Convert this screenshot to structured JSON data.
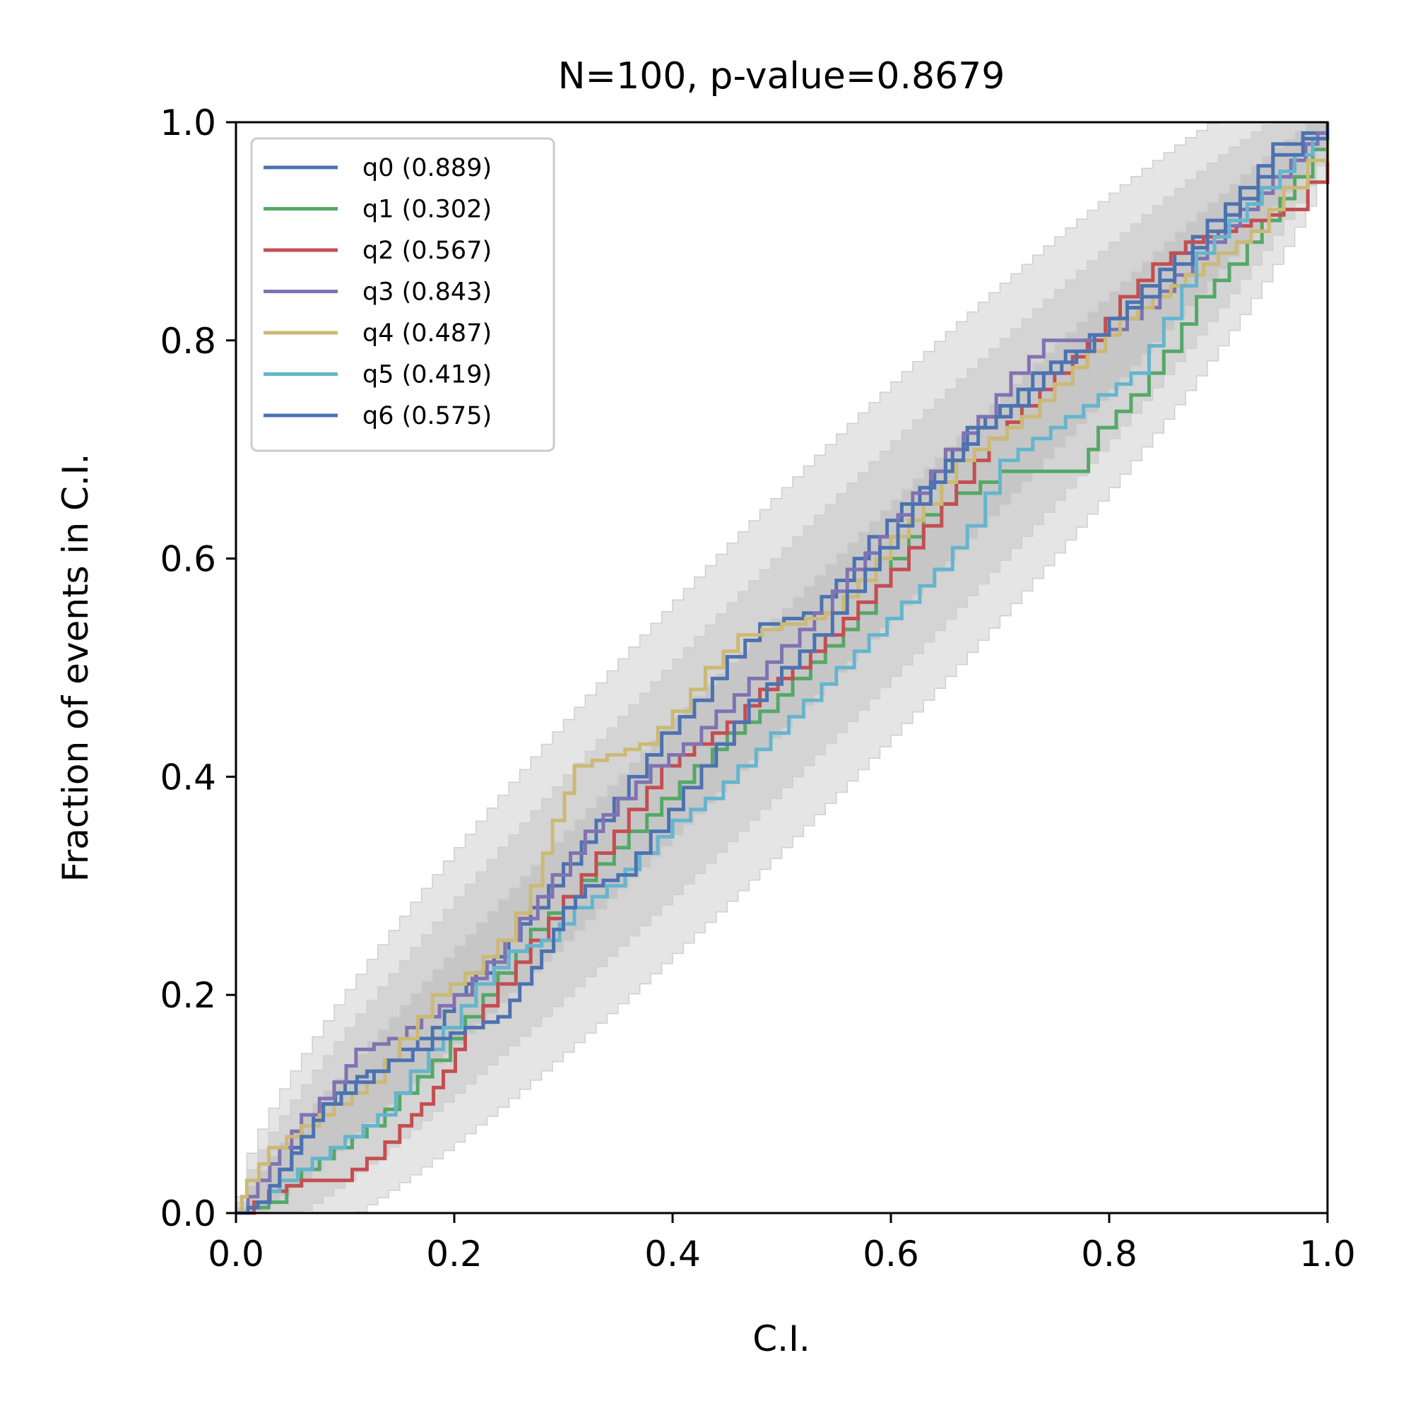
{
  "chart_data": {
    "type": "line",
    "title": "N=100, p-value=0.8679",
    "xlabel": "C.I.",
    "ylabel": "Fraction of events in C.I.",
    "xlim": [
      0.0,
      1.0
    ],
    "ylim": [
      0.0,
      1.0
    ],
    "xticks": [
      "0.0",
      "0.2",
      "0.4",
      "0.6",
      "0.8",
      "1.0"
    ],
    "yticks": [
      "0.0",
      "0.2",
      "0.4",
      "0.6",
      "0.8",
      "1.0"
    ],
    "grid": false,
    "legend_position": "top-left",
    "confidence_bands": [
      {
        "level": "outer",
        "color": "#e5e5e5"
      },
      {
        "level": "middle",
        "color": "#d4d4d4"
      },
      {
        "level": "inner",
        "color": "#c6c6c6"
      }
    ],
    "series": [
      {
        "name": "q0 (0.889)",
        "color": "#4c72b0",
        "points": [
          [
            0,
            0
          ],
          [
            0.02,
            0.01
          ],
          [
            0.04,
            0.04
          ],
          [
            0.06,
            0.08
          ],
          [
            0.08,
            0.1
          ],
          [
            0.1,
            0.12
          ],
          [
            0.12,
            0.13
          ],
          [
            0.15,
            0.15
          ],
          [
            0.18,
            0.17
          ],
          [
            0.2,
            0.2
          ],
          [
            0.22,
            0.22
          ],
          [
            0.25,
            0.25
          ],
          [
            0.27,
            0.28
          ],
          [
            0.3,
            0.32
          ],
          [
            0.33,
            0.36
          ],
          [
            0.36,
            0.4
          ],
          [
            0.39,
            0.44
          ],
          [
            0.42,
            0.47
          ],
          [
            0.45,
            0.51
          ],
          [
            0.48,
            0.54
          ],
          [
            0.52,
            0.55
          ],
          [
            0.55,
            0.58
          ],
          [
            0.58,
            0.62
          ],
          [
            0.61,
            0.65
          ],
          [
            0.64,
            0.68
          ],
          [
            0.67,
            0.72
          ],
          [
            0.7,
            0.74
          ],
          [
            0.73,
            0.77
          ],
          [
            0.76,
            0.79
          ],
          [
            0.8,
            0.82
          ],
          [
            0.83,
            0.85
          ],
          [
            0.86,
            0.88
          ],
          [
            0.89,
            0.91
          ],
          [
            0.92,
            0.94
          ],
          [
            0.95,
            0.98
          ],
          [
            1,
            1
          ]
        ]
      },
      {
        "name": "q1 (0.302)",
        "color": "#55a868",
        "points": [
          [
            0,
            0
          ],
          [
            0.03,
            0.01
          ],
          [
            0.06,
            0.04
          ],
          [
            0.09,
            0.06
          ],
          [
            0.12,
            0.08
          ],
          [
            0.15,
            0.11
          ],
          [
            0.18,
            0.14
          ],
          [
            0.21,
            0.18
          ],
          [
            0.24,
            0.22
          ],
          [
            0.27,
            0.26
          ],
          [
            0.3,
            0.29
          ],
          [
            0.33,
            0.32
          ],
          [
            0.36,
            0.35
          ],
          [
            0.39,
            0.38
          ],
          [
            0.42,
            0.41
          ],
          [
            0.45,
            0.44
          ],
          [
            0.48,
            0.46
          ],
          [
            0.51,
            0.49
          ],
          [
            0.54,
            0.52
          ],
          [
            0.57,
            0.55
          ],
          [
            0.6,
            0.6
          ],
          [
            0.63,
            0.64
          ],
          [
            0.66,
            0.66
          ],
          [
            0.7,
            0.68
          ],
          [
            0.74,
            0.68
          ],
          [
            0.77,
            0.68
          ],
          [
            0.79,
            0.72
          ],
          [
            0.82,
            0.75
          ],
          [
            0.85,
            0.79
          ],
          [
            0.88,
            0.84
          ],
          [
            0.91,
            0.87
          ],
          [
            0.94,
            0.91
          ],
          [
            0.97,
            0.95
          ],
          [
            1,
            1
          ]
        ]
      },
      {
        "name": "q2 (0.567)",
        "color": "#c44e52",
        "points": [
          [
            0,
            0
          ],
          [
            0.03,
            0.02
          ],
          [
            0.06,
            0.03
          ],
          [
            0.09,
            0.03
          ],
          [
            0.12,
            0.05
          ],
          [
            0.15,
            0.08
          ],
          [
            0.17,
            0.1
          ],
          [
            0.19,
            0.13
          ],
          [
            0.21,
            0.17
          ],
          [
            0.24,
            0.21
          ],
          [
            0.27,
            0.25
          ],
          [
            0.3,
            0.29
          ],
          [
            0.33,
            0.33
          ],
          [
            0.36,
            0.37
          ],
          [
            0.39,
            0.41
          ],
          [
            0.42,
            0.43
          ],
          [
            0.45,
            0.45
          ],
          [
            0.48,
            0.48
          ],
          [
            0.51,
            0.5
          ],
          [
            0.54,
            0.53
          ],
          [
            0.57,
            0.56
          ],
          [
            0.6,
            0.59
          ],
          [
            0.63,
            0.63
          ],
          [
            0.66,
            0.67
          ],
          [
            0.69,
            0.71
          ],
          [
            0.72,
            0.74
          ],
          [
            0.75,
            0.77
          ],
          [
            0.78,
            0.8
          ],
          [
            0.81,
            0.84
          ],
          [
            0.84,
            0.87
          ],
          [
            0.87,
            0.89
          ],
          [
            0.9,
            0.9
          ],
          [
            0.93,
            0.91
          ],
          [
            0.96,
            0.92
          ],
          [
            1,
            0.97
          ]
        ]
      },
      {
        "name": "q3 (0.843)",
        "color": "#8172b2",
        "points": [
          [
            0,
            0
          ],
          [
            0.02,
            0.03
          ],
          [
            0.04,
            0.06
          ],
          [
            0.06,
            0.09
          ],
          [
            0.09,
            0.12
          ],
          [
            0.11,
            0.15
          ],
          [
            0.14,
            0.16
          ],
          [
            0.17,
            0.18
          ],
          [
            0.2,
            0.2
          ],
          [
            0.23,
            0.23
          ],
          [
            0.26,
            0.27
          ],
          [
            0.29,
            0.31
          ],
          [
            0.32,
            0.35
          ],
          [
            0.35,
            0.38
          ],
          [
            0.38,
            0.41
          ],
          [
            0.41,
            0.43
          ],
          [
            0.44,
            0.46
          ],
          [
            0.47,
            0.49
          ],
          [
            0.5,
            0.52
          ],
          [
            0.53,
            0.55
          ],
          [
            0.56,
            0.59
          ],
          [
            0.59,
            0.62
          ],
          [
            0.62,
            0.66
          ],
          [
            0.65,
            0.7
          ],
          [
            0.68,
            0.73
          ],
          [
            0.71,
            0.77
          ],
          [
            0.74,
            0.8
          ],
          [
            0.77,
            0.8
          ],
          [
            0.8,
            0.81
          ],
          [
            0.83,
            0.83
          ],
          [
            0.86,
            0.86
          ],
          [
            0.89,
            0.89
          ],
          [
            0.92,
            0.92
          ],
          [
            0.95,
            0.95
          ],
          [
            0.98,
            0.98
          ],
          [
            1,
            1
          ]
        ]
      },
      {
        "name": "q4 (0.487)",
        "color": "#ccb974",
        "points": [
          [
            0,
            0
          ],
          [
            0.01,
            0.03
          ],
          [
            0.03,
            0.06
          ],
          [
            0.06,
            0.08
          ],
          [
            0.09,
            0.1
          ],
          [
            0.12,
            0.12
          ],
          [
            0.15,
            0.16
          ],
          [
            0.18,
            0.2
          ],
          [
            0.21,
            0.22
          ],
          [
            0.24,
            0.25
          ],
          [
            0.27,
            0.3
          ],
          [
            0.29,
            0.36
          ],
          [
            0.31,
            0.41
          ],
          [
            0.34,
            0.42
          ],
          [
            0.37,
            0.43
          ],
          [
            0.4,
            0.46
          ],
          [
            0.43,
            0.5
          ],
          [
            0.46,
            0.53
          ],
          [
            0.5,
            0.54
          ],
          [
            0.54,
            0.55
          ],
          [
            0.57,
            0.58
          ],
          [
            0.6,
            0.62
          ],
          [
            0.63,
            0.65
          ],
          [
            0.66,
            0.69
          ],
          [
            0.69,
            0.71
          ],
          [
            0.72,
            0.73
          ],
          [
            0.75,
            0.76
          ],
          [
            0.78,
            0.79
          ],
          [
            0.81,
            0.82
          ],
          [
            0.84,
            0.84
          ],
          [
            0.87,
            0.86
          ],
          [
            0.9,
            0.88
          ],
          [
            0.93,
            0.9
          ],
          [
            0.96,
            0.94
          ],
          [
            1,
            0.99
          ]
        ]
      },
      {
        "name": "q5 (0.419)",
        "color": "#64b5cd",
        "points": [
          [
            0,
            0
          ],
          [
            0.02,
            0.01
          ],
          [
            0.04,
            0.03
          ],
          [
            0.07,
            0.05
          ],
          [
            0.1,
            0.07
          ],
          [
            0.13,
            0.09
          ],
          [
            0.16,
            0.13
          ],
          [
            0.19,
            0.17
          ],
          [
            0.22,
            0.21
          ],
          [
            0.25,
            0.24
          ],
          [
            0.28,
            0.25
          ],
          [
            0.31,
            0.28
          ],
          [
            0.34,
            0.3
          ],
          [
            0.37,
            0.33
          ],
          [
            0.4,
            0.36
          ],
          [
            0.43,
            0.38
          ],
          [
            0.46,
            0.41
          ],
          [
            0.49,
            0.44
          ],
          [
            0.52,
            0.47
          ],
          [
            0.55,
            0.5
          ],
          [
            0.58,
            0.53
          ],
          [
            0.61,
            0.56
          ],
          [
            0.64,
            0.59
          ],
          [
            0.67,
            0.63
          ],
          [
            0.7,
            0.69
          ],
          [
            0.73,
            0.71
          ],
          [
            0.76,
            0.73
          ],
          [
            0.79,
            0.75
          ],
          [
            0.82,
            0.77
          ],
          [
            0.85,
            0.82
          ],
          [
            0.88,
            0.88
          ],
          [
            0.91,
            0.91
          ],
          [
            0.94,
            0.94
          ],
          [
            0.97,
            0.97
          ],
          [
            1,
            1
          ]
        ]
      },
      {
        "name": "q6 (0.575)",
        "color": "#4c72b0",
        "points": [
          [
            0,
            0
          ],
          [
            0.02,
            0.01
          ],
          [
            0.04,
            0.04
          ],
          [
            0.06,
            0.07
          ],
          [
            0.08,
            0.1
          ],
          [
            0.11,
            0.12
          ],
          [
            0.14,
            0.14
          ],
          [
            0.18,
            0.16
          ],
          [
            0.21,
            0.17
          ],
          [
            0.24,
            0.18
          ],
          [
            0.26,
            0.21
          ],
          [
            0.28,
            0.24
          ],
          [
            0.3,
            0.28
          ],
          [
            0.32,
            0.3
          ],
          [
            0.35,
            0.31
          ],
          [
            0.38,
            0.35
          ],
          [
            0.41,
            0.39
          ],
          [
            0.44,
            0.43
          ],
          [
            0.47,
            0.47
          ],
          [
            0.5,
            0.5
          ],
          [
            0.53,
            0.53
          ],
          [
            0.56,
            0.57
          ],
          [
            0.59,
            0.61
          ],
          [
            0.62,
            0.65
          ],
          [
            0.65,
            0.69
          ],
          [
            0.68,
            0.72
          ],
          [
            0.71,
            0.74
          ],
          [
            0.74,
            0.77
          ],
          [
            0.77,
            0.79
          ],
          [
            0.8,
            0.82
          ],
          [
            0.83,
            0.84
          ],
          [
            0.86,
            0.87
          ],
          [
            0.89,
            0.9
          ],
          [
            0.92,
            0.93
          ],
          [
            0.95,
            0.97
          ],
          [
            1,
            1
          ]
        ]
      }
    ]
  }
}
